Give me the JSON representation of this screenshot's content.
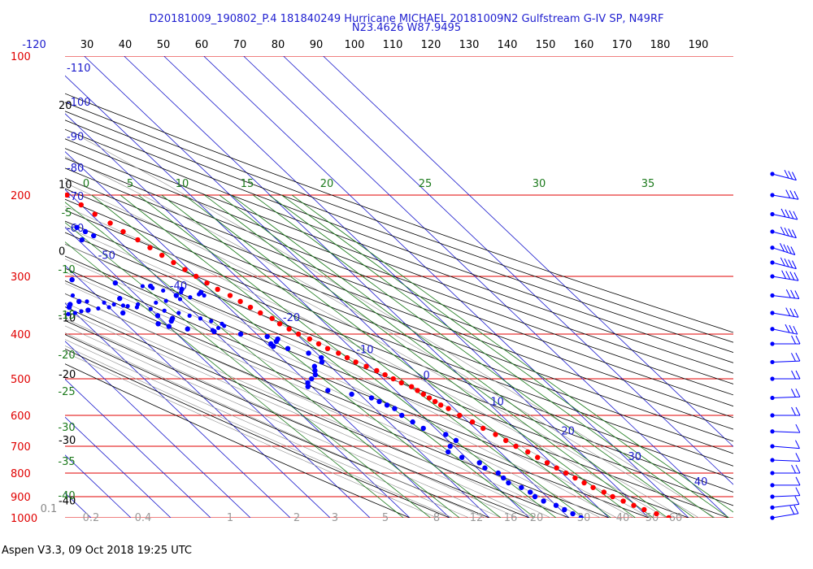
{
  "header": {
    "line1": "D20181009_190802_P.4 181840249 Hurricane MICHAEL  20181009N2 Gulfstream G-IV SP, N49RF",
    "line2": "N23.4626 W87.9495"
  },
  "footer": "Aspen V3.3, 09 Oct 2018  19:25 UTC",
  "colors": {
    "isobar": "#e00000",
    "isotherm": "#1a1acc",
    "mixing_ratio": "#1c7a1c",
    "dry_adiabat": "#000000",
    "moist_adiabat": "#8a8a8a",
    "temperature": "#ff0000",
    "dewpoint": "#0000ff"
  },
  "chart_data": {
    "type": "skew-t",
    "pressure_ticks": [
      "100",
      "200",
      "300",
      "400",
      "500",
      "600",
      "700",
      "800",
      "900",
      "1000"
    ],
    "pressure_values": [
      100,
      200,
      300,
      400,
      500,
      600,
      700,
      800,
      900,
      1000
    ],
    "top_axis_ticks": [
      "-120",
      "30",
      "40",
      "50",
      "60",
      "70",
      "80",
      "90",
      "100",
      "110",
      "120",
      "130",
      "140",
      "150",
      "160",
      "170",
      "180",
      "190"
    ],
    "isotherm_labels": [
      {
        "text": "-110",
        "t": -110,
        "p": 108
      },
      {
        "text": "-100",
        "t": -100,
        "p": 128
      },
      {
        "text": "-90",
        "t": -90,
        "p": 152
      },
      {
        "text": "-80",
        "t": -80,
        "p": 178
      },
      {
        "text": "-70",
        "t": -70,
        "p": 205
      },
      {
        "text": "-60",
        "t": -60,
        "p": 240
      },
      {
        "text": "-50",
        "t": -50,
        "p": 275
      },
      {
        "text": "-40",
        "t": -40,
        "p": 320
      },
      {
        "text": "-20",
        "t": -20,
        "p": 375
      },
      {
        "text": "-10",
        "t": -10,
        "p": 440
      },
      {
        "text": "0",
        "t": 0,
        "p": 500
      },
      {
        "text": "10",
        "t": 10,
        "p": 570
      },
      {
        "text": "20",
        "t": 20,
        "p": 660
      },
      {
        "text": "30",
        "t": 30,
        "p": 750
      },
      {
        "text": "40",
        "t": 40,
        "p": 850
      }
    ],
    "theta_labels": [
      {
        "text": "20",
        "p": 128
      },
      {
        "text": "10",
        "p": 190
      },
      {
        "text": "0",
        "p": 265
      },
      {
        "text": "-10",
        "p": 370
      },
      {
        "text": "-20",
        "p": 490
      },
      {
        "text": "-30",
        "p": 680
      },
      {
        "text": "-40",
        "p": 920
      }
    ],
    "theta_e_labels": [
      {
        "text": "0",
        "row": 1
      },
      {
        "text": "5",
        "row": 1
      },
      {
        "text": "10",
        "row": 1
      },
      {
        "text": "15",
        "row": 1
      },
      {
        "text": "20",
        "row": 1
      },
      {
        "text": "25",
        "row": 1
      },
      {
        "text": "30",
        "row": 1
      },
      {
        "text": "35",
        "row": 1
      },
      {
        "text": "-5",
        "row": 2
      },
      {
        "text": "-10",
        "row": 2
      },
      {
        "text": "-15",
        "row": 2
      },
      {
        "text": "-20",
        "row": 2
      },
      {
        "text": "-25",
        "row": 2
      },
      {
        "text": "-30",
        "row": 2
      },
      {
        "text": "-35",
        "row": 2
      },
      {
        "text": "-40",
        "row": 2
      }
    ],
    "mixing_ratio_labels": [
      "0.1",
      "0.2",
      "0.4",
      "1",
      "2",
      "3",
      "5",
      "8",
      "12",
      "16",
      "20",
      "30",
      "40",
      "50",
      "60"
    ],
    "temperature": [
      [
        180,
        -43
      ],
      [
        190,
        -42
      ],
      [
        200,
        -41
      ],
      [
        210,
        -40
      ],
      [
        220,
        -39
      ],
      [
        230,
        -37.5
      ],
      [
        240,
        -36.5
      ],
      [
        250,
        -35
      ],
      [
        260,
        -34
      ],
      [
        270,
        -33
      ],
      [
        280,
        -32
      ],
      [
        290,
        -31
      ],
      [
        300,
        -30
      ],
      [
        310,
        -29
      ],
      [
        320,
        -28
      ],
      [
        330,
        -26.5
      ],
      [
        340,
        -25.5
      ],
      [
        350,
        -24.5
      ],
      [
        360,
        -23.5
      ],
      [
        370,
        -22
      ],
      [
        380,
        -21.5
      ],
      [
        390,
        -20.5
      ],
      [
        400,
        -19.5
      ],
      [
        410,
        -18
      ],
      [
        420,
        -17
      ],
      [
        430,
        -16
      ],
      [
        440,
        -14.5
      ],
      [
        450,
        -13.5
      ],
      [
        460,
        -12.5
      ],
      [
        470,
        -11
      ],
      [
        480,
        -9.5
      ],
      [
        490,
        -8.5
      ],
      [
        500,
        -7.5
      ],
      [
        510,
        -6.5
      ],
      [
        520,
        -5
      ],
      [
        530,
        -4.5
      ],
      [
        540,
        -4
      ],
      [
        550,
        -3.5
      ],
      [
        560,
        -3
      ],
      [
        570,
        -2.5
      ],
      [
        580,
        -1.5
      ],
      [
        600,
        -0.5
      ],
      [
        620,
        1
      ],
      [
        640,
        2
      ],
      [
        660,
        3.5
      ],
      [
        680,
        4.5
      ],
      [
        700,
        5.5
      ],
      [
        720,
        7
      ],
      [
        740,
        8
      ],
      [
        760,
        9
      ],
      [
        780,
        10
      ],
      [
        800,
        11
      ],
      [
        820,
        12
      ],
      [
        840,
        13
      ],
      [
        860,
        14
      ],
      [
        880,
        15.5
      ],
      [
        900,
        16.5
      ],
      [
        920,
        18
      ],
      [
        940,
        19.5
      ],
      [
        960,
        21
      ],
      [
        980,
        23
      ],
      [
        1000,
        25
      ]
    ],
    "dewpoint": [
      [
        212,
        -68
      ],
      [
        215,
        -65
      ],
      [
        218,
        -60
      ],
      [
        220,
        -57
      ],
      [
        225,
        -54
      ],
      [
        230,
        -50
      ],
      [
        235,
        -47
      ],
      [
        240,
        -46
      ],
      [
        245,
        -45
      ],
      [
        250,
        -49
      ],
      [
        255,
        -55
      ],
      [
        260,
        -59
      ],
      [
        265,
        -62
      ],
      [
        270,
        -66
      ],
      [
        275,
        -70
      ],
      [
        280,
        -74
      ],
      [
        285,
        -77
      ],
      [
        290,
        -78
      ],
      [
        295,
        -77
      ],
      [
        300,
        -72
      ],
      [
        305,
        -62
      ],
      [
        310,
        -52
      ],
      [
        315,
        -44
      ],
      [
        320,
        -37
      ],
      [
        325,
        -33
      ],
      [
        330,
        -40
      ],
      [
        335,
        -55
      ],
      [
        340,
        -66
      ],
      [
        345,
        -69
      ],
      [
        350,
        -70
      ],
      [
        355,
        -66
      ],
      [
        360,
        -58
      ],
      [
        365,
        -50
      ],
      [
        370,
        -47
      ],
      [
        375,
        -48
      ],
      [
        380,
        -52
      ],
      [
        385,
        -50
      ],
      [
        390,
        -46
      ],
      [
        395,
        -40
      ],
      [
        400,
        -34
      ],
      [
        405,
        -28
      ],
      [
        410,
        -26
      ],
      [
        415,
        -27
      ],
      [
        420,
        -29
      ],
      [
        425,
        -29
      ],
      [
        430,
        -26
      ],
      [
        440,
        -22
      ],
      [
        450,
        -20
      ],
      [
        460,
        -21
      ],
      [
        470,
        -24
      ],
      [
        480,
        -25
      ],
      [
        490,
        -26
      ],
      [
        500,
        -28
      ],
      [
        510,
        -30
      ],
      [
        520,
        -31
      ],
      [
        530,
        -27
      ],
      [
        540,
        -22
      ],
      [
        550,
        -18
      ],
      [
        560,
        -17
      ],
      [
        570,
        -16
      ],
      [
        580,
        -15
      ],
      [
        600,
        -15
      ],
      [
        620,
        -14
      ],
      [
        640,
        -13
      ],
      [
        660,
        -9
      ],
      [
        680,
        -8
      ],
      [
        700,
        -11
      ],
      [
        720,
        -13
      ],
      [
        740,
        -11
      ],
      [
        760,
        -8
      ],
      [
        780,
        -8
      ],
      [
        800,
        -6
      ],
      [
        820,
        -6
      ],
      [
        840,
        -6
      ],
      [
        860,
        -4
      ],
      [
        880,
        -3
      ],
      [
        900,
        -3
      ],
      [
        920,
        -2
      ],
      [
        940,
        0
      ],
      [
        960,
        1
      ],
      [
        980,
        2
      ],
      [
        1000,
        3
      ]
    ],
    "dewpoint_scatter": [
      [
        315,
        -46
      ],
      [
        318,
        -44
      ],
      [
        322,
        -42
      ],
      [
        325,
        -38
      ],
      [
        328,
        -34
      ],
      [
        330,
        -33
      ],
      [
        333,
        -37
      ],
      [
        336,
        -40
      ],
      [
        339,
        -44
      ],
      [
        342,
        -47
      ],
      [
        345,
        -52
      ],
      [
        347,
        -56
      ],
      [
        350,
        -60
      ],
      [
        352,
        -63
      ],
      [
        355,
        -66
      ],
      [
        357,
        -68
      ],
      [
        360,
        -70
      ],
      [
        362,
        -72
      ],
      [
        365,
        -74
      ],
      [
        330,
        -66
      ],
      [
        332,
        -72
      ],
      [
        334,
        -78
      ],
      [
        340,
        -64
      ],
      [
        342,
        -60
      ],
      [
        345,
        -58
      ],
      [
        348,
        -55
      ],
      [
        350,
        -53
      ],
      [
        353,
        -50
      ],
      [
        356,
        -47
      ],
      [
        360,
        -44
      ],
      [
        365,
        -42
      ],
      [
        370,
        -40
      ],
      [
        375,
        -38
      ],
      [
        380,
        -36
      ],
      [
        384,
        -36
      ],
      [
        388,
        -38
      ],
      [
        392,
        -40
      ]
    ],
    "wind_barbs": [
      {
        "p": 180,
        "dir": 300,
        "spd": 25
      },
      {
        "p": 200,
        "dir": 290,
        "spd": 30
      },
      {
        "p": 220,
        "dir": 295,
        "spd": 35
      },
      {
        "p": 240,
        "dir": 300,
        "spd": 40
      },
      {
        "p": 260,
        "dir": 305,
        "spd": 40
      },
      {
        "p": 280,
        "dir": 300,
        "spd": 35
      },
      {
        "p": 300,
        "dir": 290,
        "spd": 35
      },
      {
        "p": 330,
        "dir": 285,
        "spd": 30
      },
      {
        "p": 360,
        "dir": 290,
        "spd": 30
      },
      {
        "p": 390,
        "dir": 295,
        "spd": 25
      },
      {
        "p": 420,
        "dir": 270,
        "spd": 15
      },
      {
        "p": 460,
        "dir": 265,
        "spd": 15
      },
      {
        "p": 500,
        "dir": 270,
        "spd": 15
      },
      {
        "p": 550,
        "dir": 265,
        "spd": 20
      },
      {
        "p": 600,
        "dir": 270,
        "spd": 15
      },
      {
        "p": 650,
        "dir": 275,
        "spd": 10
      },
      {
        "p": 700,
        "dir": 280,
        "spd": 10
      },
      {
        "p": 750,
        "dir": 275,
        "spd": 10
      },
      {
        "p": 800,
        "dir": 270,
        "spd": 15
      },
      {
        "p": 850,
        "dir": 270,
        "spd": 10
      },
      {
        "p": 900,
        "dir": 265,
        "spd": 10
      },
      {
        "p": 950,
        "dir": 255,
        "spd": 10
      },
      {
        "p": 1000,
        "dir": 250,
        "spd": 15
      }
    ]
  }
}
